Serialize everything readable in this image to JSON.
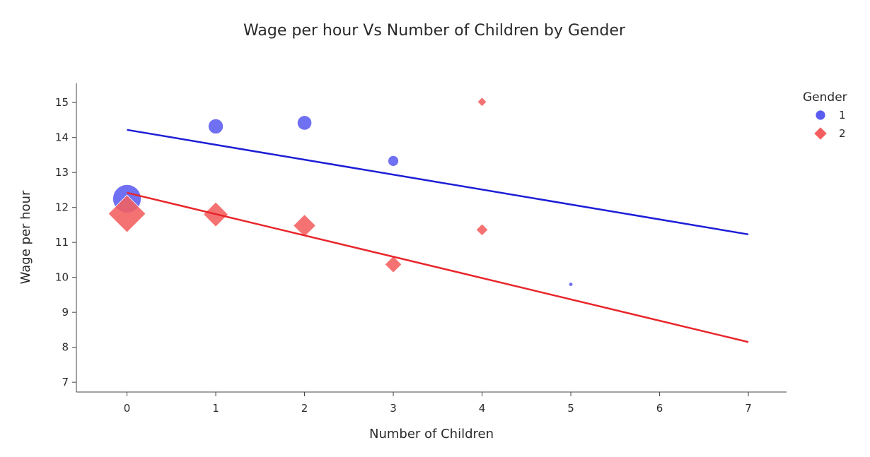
{
  "chart_data": {
    "type": "scatter",
    "title": "Wage per hour Vs Number of Children by Gender",
    "xlabel": "Number of Children",
    "ylabel": "Wage per hour",
    "xlim": [
      -0.57,
      7.43
    ],
    "ylim": [
      6.72,
      15.55
    ],
    "xticks": [
      0,
      1,
      2,
      3,
      4,
      5,
      6,
      7
    ],
    "yticks": [
      7,
      8,
      9,
      10,
      11,
      12,
      13,
      14,
      15
    ],
    "grid": false,
    "legend": {
      "title": "Gender",
      "placement": "top-right"
    },
    "series": [
      {
        "name": "1",
        "marker": "circle",
        "color": "#5b5cf0",
        "points": [
          {
            "x": 0,
            "y": 12.25,
            "size": 1.0
          },
          {
            "x": 1,
            "y": 14.32,
            "size": 0.28
          },
          {
            "x": 2,
            "y": 14.42,
            "size": 0.26
          },
          {
            "x": 3,
            "y": 13.33,
            "size": 0.14
          },
          {
            "x": 5,
            "y": 9.8,
            "size": 0.02
          }
        ],
        "trendline": {
          "color": "#1c1ed6",
          "x": [
            0,
            7
          ],
          "y": [
            14.22,
            11.23
          ]
        }
      },
      {
        "name": "2",
        "marker": "diamond",
        "color": "#f45e5e",
        "points": [
          {
            "x": 0,
            "y": 11.82,
            "size": 1.0
          },
          {
            "x": 1,
            "y": 11.8,
            "size": 0.44
          },
          {
            "x": 2,
            "y": 11.48,
            "size": 0.36
          },
          {
            "x": 3,
            "y": 10.37,
            "size": 0.2
          },
          {
            "x": 4,
            "y": 11.36,
            "size": 0.1
          },
          {
            "x": 4,
            "y": 15.02,
            "size": 0.06
          }
        ],
        "trendline": {
          "color": "#e8262b",
          "x": [
            0,
            7
          ],
          "y": [
            12.42,
            8.15
          ]
        }
      }
    ]
  }
}
